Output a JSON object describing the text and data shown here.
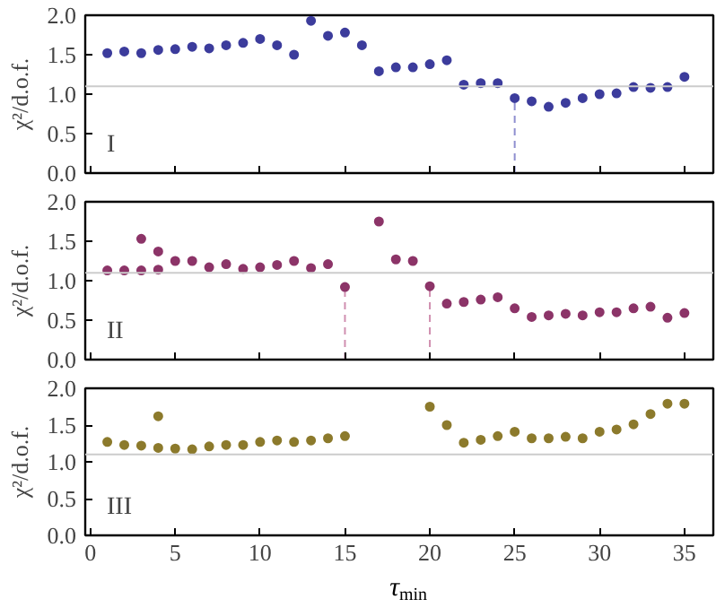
{
  "chart_data": [
    {
      "type": "scatter",
      "ylabel": "χ²/d.o.f.",
      "annotations": [
        "I"
      ],
      "marker": "circle",
      "grid": false,
      "tick_labels": "y",
      "xlim": [
        -0.3,
        36.7
      ],
      "xticks": [
        0,
        5,
        10,
        15,
        20,
        25,
        30,
        35
      ],
      "ylim": [
        0,
        2
      ],
      "yticks": [
        {
          "value": 0,
          "label": "0.0"
        },
        {
          "value": 0.5,
          "label": "0.5"
        },
        {
          "value": 1,
          "label": "1.0"
        },
        {
          "value": 1.5,
          "label": "1.5"
        },
        {
          "value": 2,
          "label": "2.0"
        }
      ],
      "ref_lines": [
        {
          "axis": "y",
          "value": 1.1,
          "color": "#cccccc"
        },
        {
          "axis": "x",
          "value": 25,
          "color": "#8f8fd0",
          "line_style": "dashed"
        }
      ],
      "series": [
        {
          "color": "#3c3c9c",
          "x": [
            1,
            2,
            3,
            4,
            5,
            6,
            7,
            8,
            9,
            10,
            11,
            12,
            13,
            14,
            15,
            16,
            17,
            18,
            19,
            20,
            21,
            22,
            23,
            24,
            25,
            26,
            27,
            28,
            29,
            30,
            31,
            32,
            33,
            34,
            35
          ],
          "values": [
            1.52,
            1.54,
            1.52,
            1.56,
            1.57,
            1.6,
            1.58,
            1.62,
            1.65,
            1.7,
            1.62,
            1.5,
            1.93,
            1.74,
            1.78,
            1.62,
            1.29,
            1.34,
            1.34,
            1.38,
            1.43,
            1.12,
            1.14,
            1.14,
            0.95,
            0.91,
            0.84,
            0.89,
            0.95,
            1.0,
            1.01,
            1.09,
            1.08,
            1.09,
            1.22
          ]
        }
      ]
    },
    {
      "type": "scatter",
      "ylabel": "χ²/d.o.f.",
      "annotations": [
        "II"
      ],
      "marker": "circle",
      "grid": false,
      "tick_labels": "y",
      "xlim": [
        -0.3,
        36.7
      ],
      "xticks": [
        0,
        5,
        10,
        15,
        20,
        25,
        30,
        35
      ],
      "ylim": [
        0,
        2
      ],
      "yticks": [
        {
          "value": 0,
          "label": "0.0"
        },
        {
          "value": 0.5,
          "label": "0.5"
        },
        {
          "value": 1,
          "label": "1.0"
        },
        {
          "value": 1.5,
          "label": "1.5"
        },
        {
          "value": 2,
          "label": "2.0"
        }
      ],
      "ref_lines": [
        {
          "axis": "y",
          "value": 1.1,
          "color": "#cccccc"
        },
        {
          "axis": "x",
          "value": 15,
          "color": "#d08fb0",
          "line_style": "dashed"
        },
        {
          "axis": "x",
          "value": 20,
          "color": "#d08fb0",
          "line_style": "dashed"
        }
      ],
      "series": [
        {
          "color": "#8c3468",
          "x": [
            1,
            2,
            3,
            3,
            4,
            4,
            5,
            6,
            7,
            8,
            9,
            10,
            11,
            12,
            13,
            14,
            15,
            17,
            18,
            19,
            20,
            21,
            22,
            23,
            24,
            25,
            26,
            27,
            28,
            29,
            30,
            31,
            32,
            33,
            34,
            35
          ],
          "values": [
            1.13,
            1.13,
            1.13,
            1.53,
            1.37,
            1.14,
            1.25,
            1.25,
            1.17,
            1.21,
            1.15,
            1.17,
            1.2,
            1.25,
            1.16,
            1.21,
            0.92,
            1.75,
            1.27,
            1.25,
            0.93,
            0.71,
            0.73,
            0.76,
            0.79,
            0.65,
            0.54,
            0.56,
            0.58,
            0.56,
            0.6,
            0.6,
            0.65,
            0.67,
            0.53,
            0.59
          ]
        }
      ]
    },
    {
      "type": "scatter",
      "ylabel": "χ²/d.o.f.",
      "xlabel": "τ$_{min}$",
      "annotations": [
        "III"
      ],
      "marker": "circle",
      "grid": false,
      "xlim": [
        -0.3,
        36.7
      ],
      "xticks": [
        0,
        5,
        10,
        15,
        20,
        25,
        30,
        35
      ],
      "ylim": [
        0,
        2
      ],
      "yticks": [
        {
          "value": 0,
          "label": "0.0"
        },
        {
          "value": 0.5,
          "label": "0.5"
        },
        {
          "value": 1,
          "label": "1.0"
        },
        {
          "value": 1.5,
          "label": "1.5"
        },
        {
          "value": 2,
          "label": "2.0"
        }
      ],
      "ref_lines": [
        {
          "axis": "y",
          "value": 1.1,
          "color": "#cccccc"
        }
      ],
      "series": [
        {
          "color": "#8c7a2c",
          "x": [
            1,
            2,
            3,
            4,
            4,
            5,
            6,
            7,
            8,
            9,
            10,
            11,
            12,
            13,
            14,
            15,
            20,
            21,
            22,
            23,
            24,
            25,
            26,
            27,
            28,
            29,
            30,
            31,
            32,
            33,
            34,
            35
          ],
          "values": [
            1.27,
            1.23,
            1.22,
            1.62,
            1.19,
            1.18,
            1.17,
            1.21,
            1.23,
            1.23,
            1.27,
            1.29,
            1.27,
            1.29,
            1.32,
            1.35,
            1.75,
            1.5,
            1.26,
            1.3,
            1.35,
            1.41,
            1.32,
            1.32,
            1.34,
            1.32,
            1.41,
            1.44,
            1.51,
            1.65,
            1.79,
            1.79
          ]
        }
      ]
    }
  ]
}
